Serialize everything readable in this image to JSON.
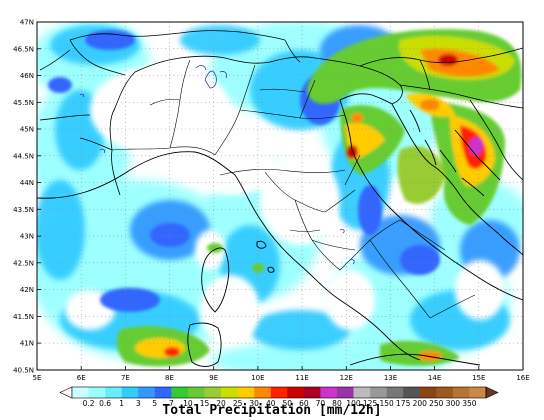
{
  "map": {
    "lat_labels": [
      "47N",
      "46.5N",
      "46N",
      "45.5N",
      "45N",
      "44.5N",
      "44N",
      "43.5N",
      "43N",
      "42.5N",
      "42N",
      "41.5N",
      "41N",
      "40.5N"
    ],
    "lon_labels": [
      "5E",
      "6E",
      "7E",
      "8E",
      "9E",
      "10E",
      "11E",
      "12E",
      "13E",
      "14E",
      "15E",
      "16E"
    ]
  },
  "colorbar": {
    "labels": [
      "0.2",
      "0.6",
      "1",
      "3",
      "5",
      "7",
      "10",
      "15",
      "20",
      "25",
      "30",
      "40",
      "50",
      "60",
      "70",
      "80",
      "100",
      "125",
      "150",
      "175",
      "200",
      "250",
      "300",
      "350"
    ],
    "colors": [
      "#ccffff",
      "#99ffff",
      "#66eeff",
      "#33ccff",
      "#3399ff",
      "#3366ff",
      "#33cc33",
      "#66cc33",
      "#99cc33",
      "#ccdd00",
      "#ffcc00",
      "#ff8800",
      "#ff2200",
      "#cc0000",
      "#aa0022",
      "#cc33cc",
      "#9933aa",
      "#bbbbbb",
      "#999999",
      "#777777",
      "#555555",
      "#8b4513",
      "#9c5a1e",
      "#b87333",
      "#cc8844"
    ],
    "title": "Total Precipitation [mm/12h]"
  }
}
